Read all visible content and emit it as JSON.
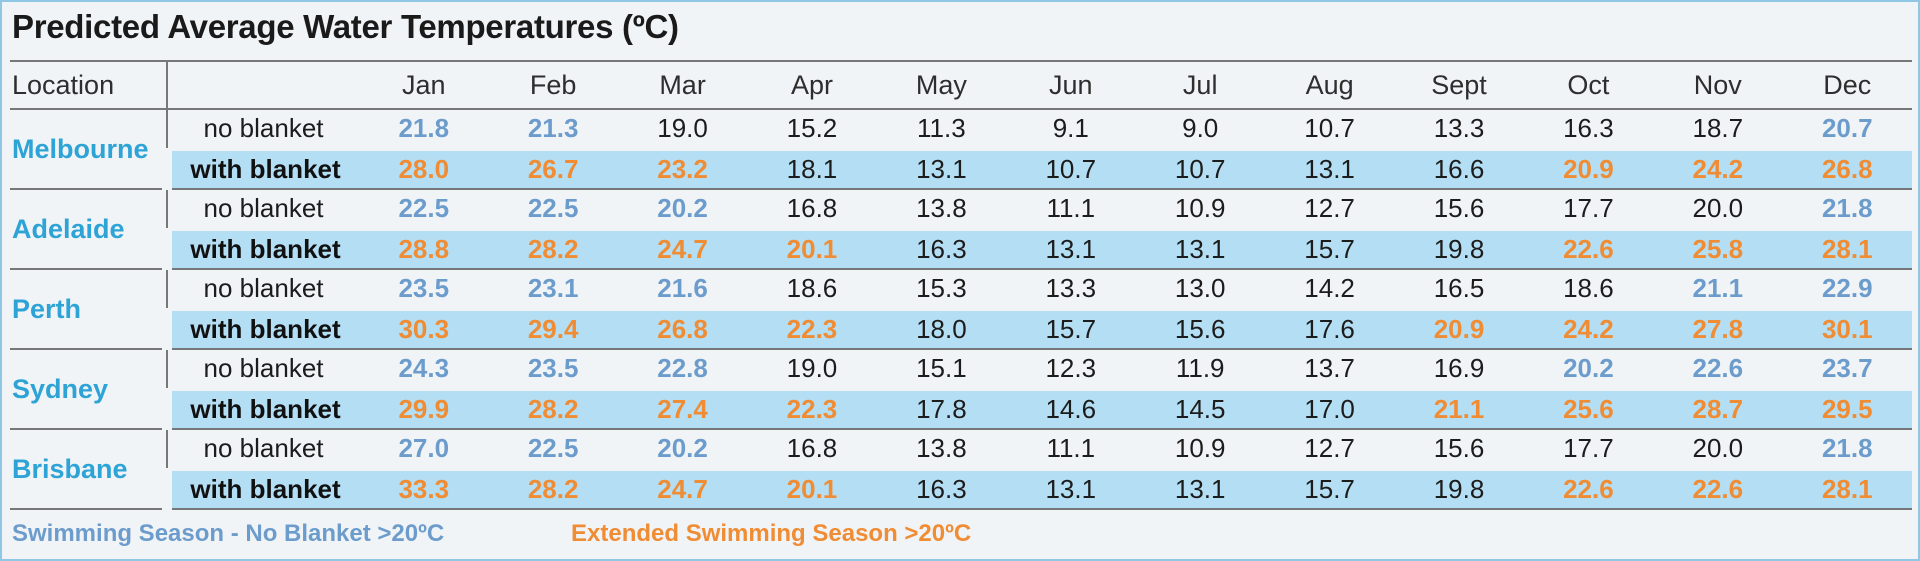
{
  "title": "Predicted Average Water Temperatures (ºC)",
  "header": {
    "location_label": "Location",
    "months": [
      "Jan",
      "Feb",
      "Mar",
      "Apr",
      "May",
      "Jun",
      "Jul",
      "Aug",
      "Sept",
      "Oct",
      "Nov",
      "Dec"
    ]
  },
  "row_labels": {
    "no_blanket": "no blanket",
    "with_blanket": "with blanket"
  },
  "locations": [
    {
      "name": "Melbourne",
      "no_blanket": [
        "21.8",
        "21.3",
        "19.0",
        "15.2",
        "11.3",
        "9.1",
        "9.0",
        "10.7",
        "13.3",
        "16.3",
        "18.7",
        "20.7"
      ],
      "with_blanket": [
        "28.0",
        "26.7",
        "23.2",
        "18.1",
        "13.1",
        "10.7",
        "10.7",
        "13.1",
        "16.6",
        "20.9",
        "24.2",
        "26.8"
      ]
    },
    {
      "name": "Adelaide",
      "no_blanket": [
        "22.5",
        "22.5",
        "20.2",
        "16.8",
        "13.8",
        "11.1",
        "10.9",
        "12.7",
        "15.6",
        "17.7",
        "20.0",
        "21.8"
      ],
      "with_blanket": [
        "28.8",
        "28.2",
        "24.7",
        "20.1",
        "16.3",
        "13.1",
        "13.1",
        "15.7",
        "19.8",
        "22.6",
        "25.8",
        "28.1"
      ]
    },
    {
      "name": "Perth",
      "no_blanket": [
        "23.5",
        "23.1",
        "21.6",
        "18.6",
        "15.3",
        "13.3",
        "13.0",
        "14.2",
        "16.5",
        "18.6",
        "21.1",
        "22.9"
      ],
      "with_blanket": [
        "30.3",
        "29.4",
        "26.8",
        "22.3",
        "18.0",
        "15.7",
        "15.6",
        "17.6",
        "20.9",
        "24.2",
        "27.8",
        "30.1"
      ]
    },
    {
      "name": "Sydney",
      "no_blanket": [
        "24.3",
        "23.5",
        "22.8",
        "19.0",
        "15.1",
        "12.3",
        "11.9",
        "13.7",
        "16.9",
        "20.2",
        "22.6",
        "23.7"
      ],
      "with_blanket": [
        "29.9",
        "28.2",
        "27.4",
        "22.3",
        "17.8",
        "14.6",
        "14.5",
        "17.0",
        "21.1",
        "25.6",
        "28.7",
        "29.5"
      ]
    },
    {
      "name": "Brisbane",
      "no_blanket": [
        "27.0",
        "22.5",
        "20.2",
        "16.8",
        "13.8",
        "11.1",
        "10.9",
        "12.7",
        "15.6",
        "17.7",
        "20.0",
        "21.8"
      ],
      "with_blanket": [
        "33.3",
        "28.2",
        "24.7",
        "20.1",
        "16.3",
        "13.1",
        "13.1",
        "15.7",
        "19.8",
        "22.6",
        "22.6",
        "28.1"
      ]
    }
  ],
  "legend": {
    "no_blanket": "Swimming Season - No Blanket >20ºC",
    "extended": "Extended Swimming Season >20ºC"
  },
  "threshold": 20,
  "colors": {
    "location_text": "#2ea3d6",
    "no_blanket_highlight": "#6c9ccc",
    "with_blanket_highlight": "#ef8c34",
    "band": "#b3def3",
    "frame": "#8fc7e4"
  }
}
